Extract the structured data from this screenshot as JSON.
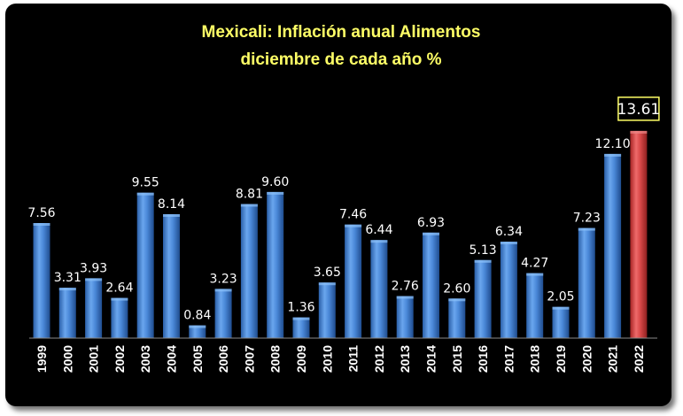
{
  "chart_data": {
    "type": "bar",
    "title_lines": [
      "Mexicali: Inflación anual Alimentos",
      "diciembre de cada año %"
    ],
    "categories": [
      "1999",
      "2000",
      "2001",
      "2002",
      "2003",
      "2004",
      "2005",
      "2006",
      "2007",
      "2008",
      "2009",
      "2010",
      "2011",
      "2012",
      "2013",
      "2014",
      "2015",
      "2016",
      "2017",
      "2018",
      "2019",
      "2020",
      "2021",
      "2022"
    ],
    "values": [
      7.56,
      3.31,
      3.93,
      2.64,
      9.55,
      8.14,
      0.84,
      3.23,
      8.81,
      9.6,
      1.36,
      3.65,
      7.46,
      6.44,
      2.76,
      6.93,
      2.6,
      5.13,
      6.34,
      4.27,
      2.05,
      7.23,
      12.1,
      13.61
    ],
    "value_labels": [
      "7.56",
      "3.31",
      "3.93",
      "2.64",
      "9.55",
      "8.14",
      "0.84",
      "3.23",
      "8.81",
      "9.60",
      "1.36",
      "3.65",
      "7.46",
      "6.44",
      "2.76",
      "6.93",
      "2.60",
      "5.13",
      "6.34",
      "4.27",
      "2.05",
      "7.23",
      "12.10",
      "13.61"
    ],
    "highlight_index": 23,
    "ylim": [
      0,
      14
    ],
    "grid": false,
    "legend": "none",
    "colors": {
      "bar": "#3f7fd0",
      "highlight": "#d03a3a",
      "title": "#ffff66",
      "background": "#000000",
      "text": "#ffffff",
      "callout_border": "#ffff66"
    }
  }
}
